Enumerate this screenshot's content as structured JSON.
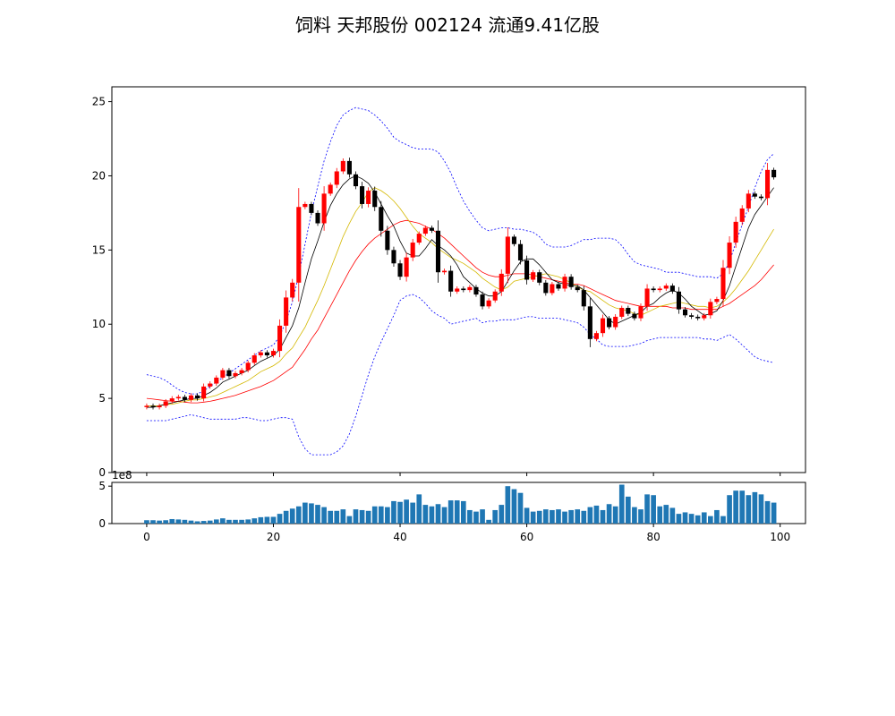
{
  "title": "饲料 天邦股份 002124 流通9.41亿股",
  "chart_data": [
    {
      "type": "candlestick",
      "x": [
        0,
        1,
        2,
        3,
        4,
        5,
        6,
        7,
        8,
        9,
        10,
        11,
        12,
        13,
        14,
        15,
        16,
        17,
        18,
        19,
        20,
        21,
        22,
        23,
        24,
        25,
        26,
        27,
        28,
        29,
        30,
        31,
        32,
        33,
        34,
        35,
        36,
        37,
        38,
        39,
        40,
        41,
        42,
        43,
        44,
        45,
        46,
        47,
        48,
        49,
        50,
        51,
        52,
        53,
        54,
        55,
        56,
        57,
        58,
        59,
        60,
        61,
        62,
        63,
        64,
        65,
        66,
        67,
        68,
        69,
        70,
        71,
        72,
        73,
        74,
        75,
        76,
        77,
        78,
        79,
        80,
        81,
        82,
        83,
        84,
        85,
        86,
        87,
        88,
        89,
        90,
        91,
        92,
        93,
        94,
        95,
        96,
        97,
        98,
        99
      ],
      "close": [
        4.5,
        4.4,
        4.5,
        4.8,
        5.0,
        5.1,
        4.9,
        5.2,
        5.0,
        5.8,
        6.0,
        6.4,
        6.9,
        6.5,
        6.7,
        6.9,
        7.4,
        7.9,
        8.1,
        7.9,
        8.2,
        9.9,
        11.8,
        12.8,
        17.9,
        18.1,
        17.5,
        16.8,
        18.8,
        19.4,
        20.3,
        21.0,
        20.1,
        19.3,
        18.1,
        19.0,
        17.9,
        16.3,
        15.0,
        14.1,
        13.2,
        14.5,
        15.5,
        16.1,
        16.5,
        16.3,
        13.5,
        13.6,
        12.2,
        12.4,
        12.3,
        12.5,
        12.0,
        11.2,
        11.6,
        12.2,
        13.4,
        15.9,
        15.4,
        14.3,
        13.0,
        13.5,
        12.8,
        12.1,
        12.7,
        12.4,
        13.2,
        12.5,
        12.3,
        11.2,
        9.0,
        9.4,
        10.4,
        9.8,
        10.5,
        11.1,
        10.7,
        10.4,
        11.2,
        12.4,
        12.3,
        12.4,
        12.6,
        12.2,
        11.0,
        10.6,
        10.5,
        10.4,
        10.6,
        11.5,
        11.7,
        13.8,
        15.5,
        16.9,
        17.8,
        18.8,
        18.6,
        18.5,
        20.4,
        19.9
      ],
      "ma5": [
        4.4,
        4.4,
        4.5,
        4.6,
        4.7,
        4.8,
        4.9,
        5.0,
        5.0,
        5.2,
        5.4,
        5.7,
        6.1,
        6.3,
        6.5,
        6.7,
        6.9,
        7.2,
        7.5,
        7.7,
        7.9,
        8.3,
        9.1,
        9.9,
        11.1,
        12.8,
        14.4,
        15.6,
        16.9,
        18.0,
        18.8,
        19.4,
        19.8,
        20.0,
        19.8,
        19.5,
        18.9,
        18.1,
        17.3,
        16.6,
        15.6,
        14.8,
        14.6,
        14.6,
        15.1,
        15.7,
        15.3,
        15.0,
        14.6,
        14.0,
        13.2,
        12.8,
        12.4,
        12.1,
        11.9,
        11.9,
        12.2,
        12.9,
        13.6,
        14.2,
        14.4,
        14.4,
        14.0,
        13.5,
        13.0,
        12.8,
        12.7,
        12.6,
        12.6,
        12.3,
        11.8,
        11.3,
        10.8,
        10.3,
        10.0,
        10.2,
        10.4,
        10.6,
        10.8,
        11.2,
        11.4,
        11.8,
        12.1,
        12.3,
        12.1,
        11.7,
        11.2,
        10.9,
        10.6,
        10.7,
        10.9,
        11.6,
        12.6,
        13.9,
        15.2,
        16.5,
        17.4,
        18.0,
        18.6,
        19.2
      ],
      "ma10": [
        4.5,
        4.5,
        4.5,
        4.6,
        4.6,
        4.7,
        4.8,
        4.9,
        4.9,
        5.0,
        5.1,
        5.2,
        5.4,
        5.6,
        5.8,
        6.0,
        6.2,
        6.5,
        6.8,
        7.0,
        7.2,
        7.5,
        8.0,
        8.4,
        9.1,
        9.8,
        10.7,
        11.6,
        12.6,
        13.7,
        14.8,
        15.9,
        16.8,
        17.6,
        18.2,
        18.9,
        19.2,
        19.0,
        18.7,
        18.3,
        17.8,
        17.2,
        16.6,
        16.1,
        15.8,
        15.5,
        15.1,
        14.8,
        14.5,
        14.3,
        14.1,
        13.8,
        13.5,
        13.1,
        12.8,
        12.5,
        12.3,
        12.5,
        12.9,
        13.0,
        13.1,
        13.2,
        13.3,
        13.4,
        13.3,
        13.2,
        13.0,
        12.8,
        12.5,
        12.3,
        12.2,
        11.9,
        11.6,
        11.3,
        11.1,
        11.0,
        10.9,
        10.7,
        10.6,
        10.8,
        11.0,
        11.2,
        11.3,
        11.4,
        11.5,
        11.4,
        11.3,
        11.2,
        11.2,
        11.1,
        11.2,
        11.5,
        11.9,
        12.4,
        13.0,
        13.6,
        14.3,
        15.0,
        15.7,
        16.4
      ],
      "ma20": [
        5.0,
        4.95,
        4.9,
        4.85,
        4.8,
        4.8,
        4.75,
        4.7,
        4.7,
        4.75,
        4.8,
        4.9,
        5.0,
        5.1,
        5.2,
        5.35,
        5.5,
        5.65,
        5.8,
        6.0,
        6.2,
        6.5,
        6.8,
        7.1,
        7.7,
        8.3,
        9.0,
        9.6,
        10.4,
        11.2,
        12.0,
        12.8,
        13.6,
        14.3,
        14.9,
        15.4,
        15.8,
        16.1,
        16.4,
        16.7,
        16.9,
        17.0,
        16.9,
        16.8,
        16.6,
        16.4,
        16.1,
        15.8,
        15.4,
        15.0,
        14.6,
        14.2,
        13.8,
        13.5,
        13.3,
        13.2,
        13.2,
        13.3,
        13.4,
        13.4,
        13.4,
        13.3,
        13.2,
        13.1,
        13.0,
        12.9,
        12.8,
        12.7,
        12.7,
        12.6,
        12.4,
        12.2,
        12.0,
        11.8,
        11.6,
        11.5,
        11.4,
        11.3,
        11.2,
        11.2,
        11.2,
        11.2,
        11.2,
        11.1,
        11.1,
        11.1,
        11.0,
        11.0,
        11.0,
        11.0,
        11.0,
        11.2,
        11.4,
        11.7,
        12.0,
        12.3,
        12.6,
        13.0,
        13.5,
        14.0
      ],
      "boll_upper": [
        6.6,
        6.5,
        6.4,
        6.2,
        5.9,
        5.6,
        5.4,
        5.3,
        5.3,
        5.5,
        5.8,
        6.1,
        6.4,
        6.7,
        7.0,
        7.3,
        7.6,
        7.9,
        8.2,
        8.4,
        8.6,
        9.2,
        10.2,
        11.5,
        13.3,
        15.4,
        17.5,
        19.3,
        21.0,
        22.3,
        23.4,
        24.1,
        24.4,
        24.6,
        24.5,
        24.4,
        24.1,
        23.7,
        23.2,
        22.6,
        22.3,
        22.1,
        21.9,
        21.8,
        21.8,
        21.8,
        21.6,
        21.0,
        20.2,
        19.2,
        18.3,
        17.6,
        17.0,
        16.5,
        16.3,
        16.4,
        16.5,
        16.5,
        16.4,
        16.4,
        16.3,
        16.2,
        15.9,
        15.4,
        15.2,
        15.2,
        15.2,
        15.3,
        15.5,
        15.7,
        15.7,
        15.8,
        15.8,
        15.8,
        15.7,
        15.3,
        14.7,
        14.2,
        14.0,
        13.9,
        13.8,
        13.7,
        13.5,
        13.5,
        13.5,
        13.4,
        13.3,
        13.2,
        13.2,
        13.2,
        13.1,
        13.4,
        14.2,
        15.5,
        16.7,
        17.9,
        19.2,
        20.3,
        21.1,
        21.5
      ],
      "boll_lower": [
        3.5,
        3.5,
        3.5,
        3.5,
        3.6,
        3.7,
        3.8,
        3.9,
        3.8,
        3.7,
        3.6,
        3.6,
        3.6,
        3.6,
        3.6,
        3.7,
        3.7,
        3.6,
        3.5,
        3.5,
        3.6,
        3.7,
        3.7,
        3.6,
        2.4,
        1.6,
        1.2,
        1.2,
        1.2,
        1.2,
        1.4,
        1.8,
        2.6,
        3.8,
        5.2,
        6.6,
        7.8,
        8.8,
        9.7,
        10.6,
        11.6,
        11.9,
        12.0,
        11.8,
        11.4,
        10.9,
        10.6,
        10.4,
        10.0,
        10.1,
        10.2,
        10.3,
        10.4,
        10.1,
        10.2,
        10.2,
        10.3,
        10.3,
        10.3,
        10.4,
        10.5,
        10.5,
        10.4,
        10.4,
        10.4,
        10.4,
        10.3,
        10.2,
        10.1,
        9.8,
        9.3,
        9.0,
        8.6,
        8.5,
        8.5,
        8.5,
        8.5,
        8.6,
        8.7,
        8.9,
        9.0,
        9.1,
        9.1,
        9.1,
        9.1,
        9.1,
        9.1,
        9.1,
        9.0,
        9.0,
        8.9,
        9.1,
        9.3,
        9.0,
        8.6,
        8.2,
        7.8,
        7.6,
        7.5,
        7.4
      ],
      "ylim": [
        0,
        26
      ],
      "xlim": [
        -5.5,
        104
      ],
      "yticks": [
        "0",
        "5",
        "10",
        "15",
        "20",
        "25"
      ]
    },
    {
      "type": "bar",
      "x": [
        0,
        1,
        2,
        3,
        4,
        5,
        6,
        7,
        8,
        9,
        10,
        11,
        12,
        13,
        14,
        15,
        16,
        17,
        18,
        19,
        20,
        21,
        22,
        23,
        24,
        25,
        26,
        27,
        28,
        29,
        30,
        31,
        32,
        33,
        34,
        35,
        36,
        37,
        38,
        39,
        40,
        41,
        42,
        43,
        44,
        45,
        46,
        47,
        48,
        49,
        50,
        51,
        52,
        53,
        54,
        55,
        56,
        57,
        58,
        59,
        60,
        61,
        62,
        63,
        64,
        65,
        66,
        67,
        68,
        69,
        70,
        71,
        72,
        73,
        74,
        75,
        76,
        77,
        78,
        79,
        80,
        81,
        82,
        83,
        84,
        85,
        86,
        87,
        88,
        89,
        90,
        91,
        92,
        93,
        94,
        95,
        96,
        97,
        98,
        99
      ],
      "values": [
        0.45,
        0.45,
        0.4,
        0.45,
        0.6,
        0.55,
        0.5,
        0.4,
        0.3,
        0.35,
        0.4,
        0.55,
        0.7,
        0.5,
        0.5,
        0.5,
        0.55,
        0.7,
        0.85,
        0.9,
        0.9,
        1.3,
        1.7,
        2.0,
        2.3,
        2.8,
        2.7,
        2.5,
        2.2,
        1.7,
        1.7,
        1.9,
        1.0,
        1.9,
        1.8,
        1.7,
        2.3,
        2.3,
        2.2,
        3.0,
        2.9,
        3.2,
        2.8,
        3.9,
        2.5,
        2.3,
        2.6,
        2.2,
        3.1,
        3.1,
        3.0,
        1.8,
        1.6,
        1.9,
        0.5,
        1.8,
        2.5,
        5.0,
        4.6,
        4.1,
        2.1,
        1.6,
        1.7,
        1.9,
        1.8,
        1.9,
        1.6,
        1.8,
        1.9,
        1.7,
        2.2,
        2.4,
        1.8,
        2.6,
        2.3,
        5.2,
        3.6,
        2.2,
        1.9,
        3.9,
        3.8,
        2.3,
        2.5,
        2.1,
        1.3,
        1.5,
        1.3,
        1.1,
        1.5,
        1.0,
        1.8,
        1.0,
        3.8,
        4.4,
        4.4,
        3.8,
        4.2,
        3.9,
        3.0,
        2.8
      ],
      "ylim": [
        0,
        5.5
      ],
      "yticks": [
        "0",
        "5"
      ],
      "scale_label": "1e8",
      "xticks": [
        "0",
        "20",
        "40",
        "60",
        "80",
        "100"
      ]
    }
  ],
  "colors": {
    "up": "#ff0000",
    "down": "#000000",
    "ma5": "#000000",
    "ma10": "#d4b800",
    "ma20": "#ff0000",
    "boll": "#0000ff",
    "volume": "#1f77b4"
  }
}
